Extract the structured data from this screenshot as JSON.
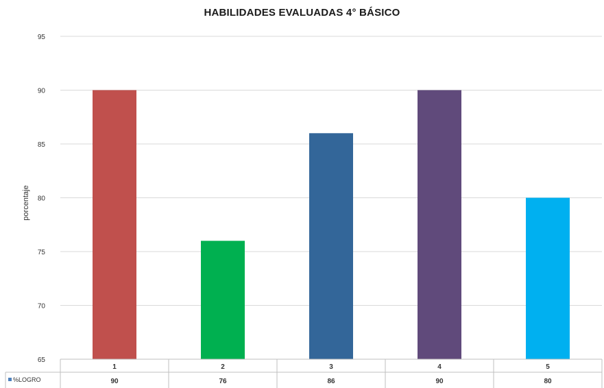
{
  "chart_data": {
    "type": "bar",
    "title": "HABILIDADES EVALUADAS 4° BÁSICO",
    "xlabel": "",
    "ylabel": "porcentaje",
    "ylim": [
      65,
      95
    ],
    "yticks": [
      65,
      70,
      75,
      80,
      85,
      90,
      95
    ],
    "grid": true,
    "categories": [
      "1",
      "2",
      "3",
      "4",
      "5"
    ],
    "series": [
      {
        "name": "%LOGRO",
        "values": [
          90,
          76,
          86,
          90,
          80
        ],
        "colors": [
          "#c0504d",
          "#00b050",
          "#336699",
          "#604a7b",
          "#00b0f0"
        ]
      }
    ],
    "legend_color": "#4f81bd",
    "data_table": true
  }
}
